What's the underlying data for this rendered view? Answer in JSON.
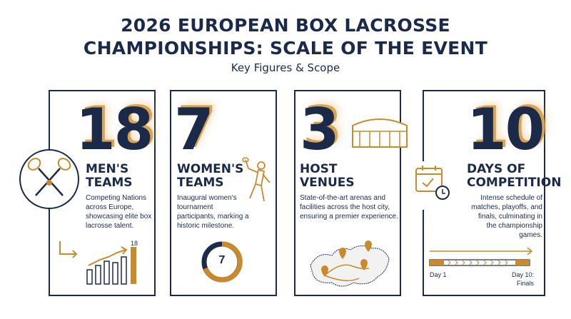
{
  "header": {
    "title_line1": "2026 EUROPEAN BOX LACROSSE",
    "title_line2": "CHAMPIONSHIPS: SCALE OF THE EVENT",
    "subtitle": "Key Figures & Scope"
  },
  "colors": {
    "navy": "#1c2a4a",
    "gold": "#c98a2c"
  },
  "cards": [
    {
      "number": "18",
      "heading_line1": "MEN'S",
      "heading_line2": "TEAMS",
      "description": "Competing Nations across Europe, showcasing elite box lacrosse talent.",
      "icon": "crossed-lacrosse-sticks-icon",
      "chart_label": "18"
    },
    {
      "number": "7",
      "heading_line1": "WOMEN'S",
      "heading_line2": "TEAMS",
      "description": "Inaugural women's tournament participants, marking a historic milestone.",
      "icon": "female-lacrosse-player-icon",
      "ring_label": "7"
    },
    {
      "number": "3",
      "heading_line1": "HOST",
      "heading_line2": "VENUES",
      "description": "State-of-the-art arenas and facilities across the host city, ensuring a premier experience.",
      "icon": "stadium-icon",
      "map_icon": "europe-map-with-pins-icon"
    },
    {
      "number": "10",
      "heading_line1": "DAYS OF",
      "heading_line2": "COMPETITION",
      "description": "Intense schedule of matches, playoffs, and finals, culminating in the championship games.",
      "icon": "calendar-clock-icon",
      "timeline_start": "Day 1",
      "timeline_end_line1": "Day 10:",
      "timeline_end_line2": "Finals"
    }
  ]
}
